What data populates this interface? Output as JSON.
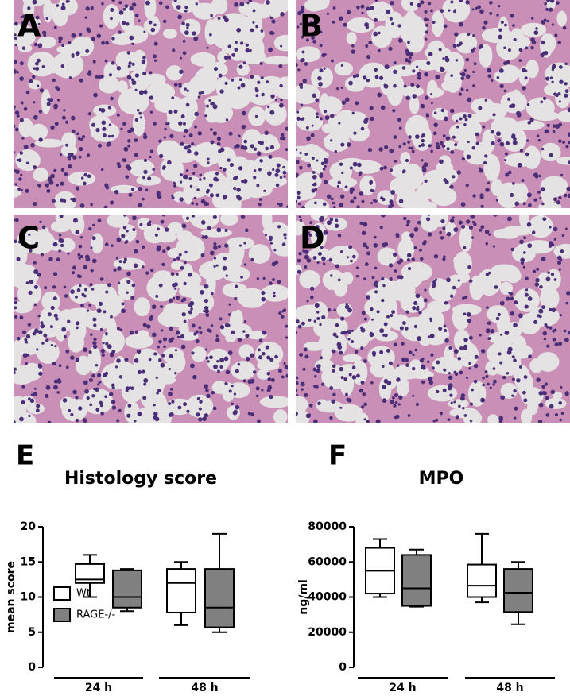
{
  "panels": [
    {
      "label": "A"
    },
    {
      "label": "B"
    },
    {
      "label": "C"
    },
    {
      "label": "D"
    }
  ],
  "chart_data": [
    {
      "type": "box",
      "panel_label": "E",
      "title": "Histology score",
      "y_label": "mean score",
      "categories": [
        "24 h",
        "48 h"
      ],
      "series": [
        {
          "name": "Wt",
          "color": "#ffffff",
          "values": [
            [
              10,
              12,
              12.5,
              14.7,
              16
            ],
            [
              6,
              7.8,
              12,
              14,
              15
            ]
          ]
        },
        {
          "name": "RAGE-/-",
          "color": "#808080",
          "values": [
            [
              8,
              8.5,
              10,
              13.8,
              14
            ],
            [
              5,
              5.7,
              8.5,
              14,
              19
            ]
          ]
        }
      ],
      "ylim": [
        0,
        20
      ],
      "yticks": [
        0,
        5,
        10,
        15,
        20
      ],
      "legend": "lower-left"
    },
    {
      "type": "box",
      "panel_label": "F",
      "title": "MPO",
      "y_label": "ng/ml",
      "categories": [
        "24 h",
        "48 h"
      ],
      "series": [
        {
          "name": "Wt",
          "color": "#ffffff",
          "values": [
            [
              40000,
              42000,
              55000,
              68000,
              73000
            ],
            [
              37000,
              40000,
              46500,
              58500,
              76000
            ]
          ]
        },
        {
          "name": "RAGE-/-",
          "color": "#808080",
          "values": [
            [
              34500,
              35000,
              45000,
              64000,
              67000
            ],
            [
              24500,
              31500,
              42500,
              56000,
              60000
            ]
          ]
        }
      ],
      "ylim": [
        0,
        80000
      ],
      "yticks": [
        0,
        20000,
        40000,
        60000,
        80000
      ],
      "legend": "none"
    }
  ]
}
